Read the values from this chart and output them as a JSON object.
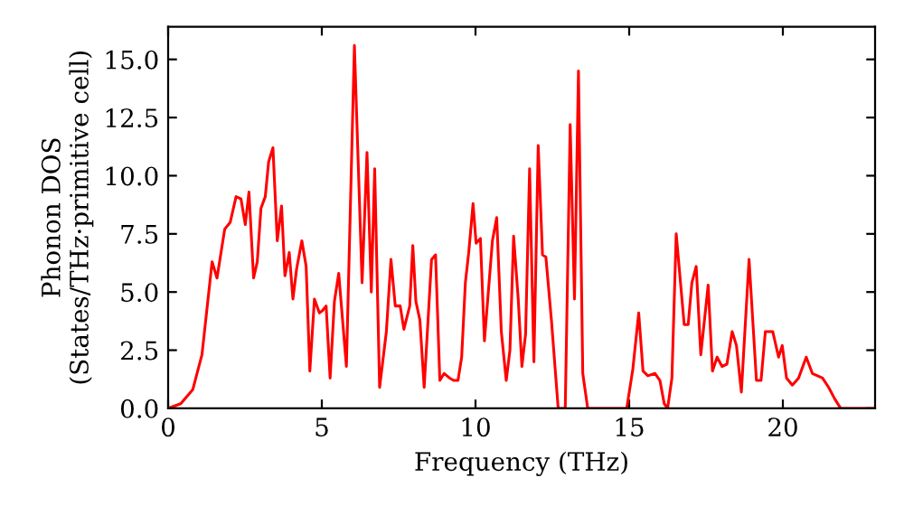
{
  "chart_data": {
    "type": "line",
    "xlabel": "Frequency (THz)",
    "ylabel": "Phonon DOS\n(States/THz·primitive cell)",
    "xlim": [
      0,
      23
    ],
    "ylim": [
      0,
      16.4
    ],
    "xticks": [
      0,
      5,
      10,
      15,
      20
    ],
    "yticks": [
      {
        "value": 0,
        "label": "0.0"
      },
      {
        "value": 2.5,
        "label": "2.5"
      },
      {
        "value": 5,
        "label": "5.0"
      },
      {
        "value": 7.5,
        "label": "7.5"
      },
      {
        "value": 10,
        "label": "10.0"
      },
      {
        "value": 12.5,
        "label": "12.5"
      },
      {
        "value": 15,
        "label": "15.0"
      }
    ],
    "grid": false,
    "legend": false,
    "marker": "none",
    "line_style": "solid",
    "series": [
      {
        "color": "#ff0000",
        "x": [
          0,
          0.41,
          0.8,
          1.1,
          1.43,
          1.59,
          1.84,
          2.02,
          2.21,
          2.37,
          2.51,
          2.63,
          2.78,
          2.9,
          3.02,
          3.16,
          3.27,
          3.41,
          3.55,
          3.69,
          3.8,
          3.94,
          4.06,
          4.18,
          4.35,
          4.49,
          4.61,
          4.76,
          4.92,
          5.02,
          5.14,
          5.27,
          5.41,
          5.55,
          5.8,
          6.06,
          6.31,
          6.47,
          6.61,
          6.72,
          6.88,
          7.1,
          7.25,
          7.39,
          7.55,
          7.67,
          7.86,
          7.96,
          8.06,
          8.19,
          8.33,
          8.57,
          8.7,
          8.84,
          8.98,
          9.16,
          9.29,
          9.43,
          9.55,
          9.67,
          9.78,
          9.92,
          10.02,
          10.16,
          10.29,
          10.55,
          10.69,
          10.84,
          11.0,
          11.12,
          11.24,
          11.39,
          11.51,
          11.63,
          11.76,
          11.9,
          12.04,
          12.18,
          12.29,
          12.47,
          12.69,
          12.92,
          13.08,
          13.22,
          13.35,
          13.49,
          13.65,
          14.92,
          15.12,
          15.31,
          15.45,
          15.61,
          15.84,
          16.0,
          16.14,
          16.25,
          16.39,
          16.53,
          16.79,
          16.92,
          17.04,
          17.18,
          17.33,
          17.57,
          17.71,
          17.86,
          18.02,
          18.18,
          18.35,
          18.49,
          18.65,
          18.9,
          19.14,
          19.29,
          19.43,
          19.67,
          19.86,
          19.98,
          20.12,
          20.31,
          20.51,
          20.76,
          20.96,
          21.29,
          21.49,
          21.69,
          21.88,
          23
        ],
        "values": [
          0,
          0.2,
          0.8,
          2.3,
          6.3,
          5.6,
          7.7,
          8.0,
          9.1,
          9.0,
          7.9,
          9.3,
          5.6,
          6.3,
          8.6,
          9.1,
          10.6,
          11.2,
          7.2,
          8.7,
          5.7,
          6.7,
          4.7,
          6.0,
          7.2,
          6.1,
          1.6,
          4.7,
          4.1,
          4.2,
          4.4,
          1.3,
          4.6,
          5.8,
          1.8,
          15.6,
          5.4,
          11.0,
          5.0,
          10.3,
          0.9,
          3.3,
          6.4,
          4.4,
          4.4,
          3.4,
          4.4,
          7.0,
          4.6,
          3.8,
          0.9,
          6.4,
          6.6,
          1.2,
          1.5,
          1.3,
          1.2,
          1.2,
          2.2,
          5.4,
          6.7,
          8.8,
          7.1,
          7.3,
          2.9,
          7.2,
          8.2,
          3.3,
          1.2,
          2.5,
          7.4,
          4.7,
          1.8,
          3.2,
          10.3,
          2.0,
          11.3,
          6.6,
          6.5,
          3.8,
          0,
          0,
          12.2,
          4.7,
          14.5,
          1.5,
          0,
          0,
          1.7,
          4.1,
          1.6,
          1.4,
          1.5,
          1.2,
          0.2,
          0,
          1.3,
          7.5,
          3.6,
          3.6,
          5.4,
          6.1,
          2.3,
          5.3,
          1.6,
          2.2,
          1.8,
          1.9,
          3.3,
          2.7,
          0.7,
          6.4,
          1.2,
          1.2,
          3.3,
          3.3,
          2.2,
          2.7,
          1.3,
          1.0,
          1.3,
          2.2,
          1.5,
          1.3,
          0.9,
          0.4,
          0,
          0
        ]
      }
    ]
  }
}
